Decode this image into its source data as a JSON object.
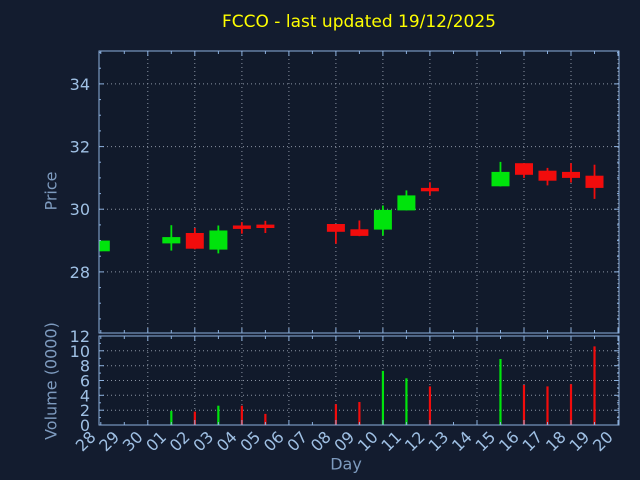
{
  "title": {
    "text": "FCCO - last updated 19/12/2025",
    "color": "#ffff00"
  },
  "chart_data": {
    "type": "candlestick",
    "title": "FCCO - last updated 19/12/2025",
    "xlabel": "Day",
    "x_labels": [
      "28",
      "29",
      "30",
      "01",
      "02",
      "03",
      "04",
      "05",
      "06",
      "07",
      "08",
      "09",
      "10",
      "11",
      "12",
      "13",
      "14",
      "15",
      "16",
      "17",
      "18",
      "19",
      "20"
    ],
    "grid_day_indices": [
      2,
      4,
      6,
      8,
      10,
      12,
      14,
      16,
      18,
      20,
      22
    ],
    "price": {
      "axis_label": "Price",
      "ticks": [
        28,
        30,
        32,
        34
      ],
      "range": [
        26.05,
        35.05
      ],
      "minor_step": 0.5
    },
    "volume": {
      "axis_label": "Volume (0000)",
      "ticks": [
        0,
        2,
        4,
        6,
        8,
        10,
        12
      ],
      "grid_ticks": [
        2,
        4,
        6,
        8,
        10
      ],
      "range": [
        0,
        12
      ]
    },
    "candles": [
      {
        "day": "28",
        "i": 0,
        "open": 28.66,
        "high": 29.0,
        "low": 28.66,
        "close": 29.0,
        "volume": 0
      },
      {
        "day": "01",
        "i": 3,
        "open": 28.91,
        "high": 29.49,
        "low": 28.68,
        "close": 29.11,
        "volume": 1.9
      },
      {
        "day": "02",
        "i": 4,
        "open": 29.24,
        "high": 29.4,
        "low": 28.72,
        "close": 28.74,
        "volume": 1.8
      },
      {
        "day": "03",
        "i": 5,
        "open": 28.71,
        "high": 29.48,
        "low": 28.59,
        "close": 29.32,
        "volume": 2.6
      },
      {
        "day": "04",
        "i": 6,
        "open": 29.48,
        "high": 29.59,
        "low": 29.22,
        "close": 29.37,
        "volume": 2.6
      },
      {
        "day": "05",
        "i": 7,
        "open": 29.51,
        "high": 29.63,
        "low": 29.24,
        "close": 29.4,
        "volume": 1.5
      },
      {
        "day": "08",
        "i": 10,
        "open": 29.53,
        "high": 29.53,
        "low": 28.9,
        "close": 29.28,
        "volume": 2.8
      },
      {
        "day": "09",
        "i": 11,
        "open": 29.36,
        "high": 29.64,
        "low": 29.14,
        "close": 29.15,
        "volume": 3.1
      },
      {
        "day": "10",
        "i": 12,
        "open": 29.35,
        "high": 30.12,
        "low": 29.16,
        "close": 29.98,
        "volume": 7.3
      },
      {
        "day": "11",
        "i": 13,
        "open": 29.96,
        "high": 30.6,
        "low": 29.96,
        "close": 30.44,
        "volume": 6.3
      },
      {
        "day": "12",
        "i": 14,
        "open": 30.68,
        "high": 30.86,
        "low": 30.44,
        "close": 30.57,
        "volume": 5.2
      },
      {
        "day": "15",
        "i": 17,
        "open": 30.73,
        "high": 31.51,
        "low": 30.73,
        "close": 31.19,
        "volume": 8.9
      },
      {
        "day": "16",
        "i": 18,
        "open": 31.47,
        "high": 31.47,
        "low": 31.0,
        "close": 31.1,
        "volume": 5.4
      },
      {
        "day": "17",
        "i": 19,
        "open": 31.23,
        "high": 31.32,
        "low": 30.76,
        "close": 30.91,
        "volume": 5.2
      },
      {
        "day": "18",
        "i": 20,
        "open": 31.19,
        "high": 31.47,
        "low": 30.85,
        "close": 31.0,
        "volume": 5.5
      },
      {
        "day": "19",
        "i": 21,
        "open": 31.07,
        "high": 31.42,
        "low": 30.33,
        "close": 30.68,
        "volume": 10.6
      }
    ],
    "colors": {
      "up": "#00e40c",
      "down": "#f20c0c",
      "axis": "#8cb0dd",
      "tick_label": "#9fc0e4",
      "axis_title": "#7e9bbf",
      "grid": "#8b94a3",
      "background": "#131c2f",
      "plot_background": "#111a2b",
      "title": "#ffff00"
    }
  }
}
